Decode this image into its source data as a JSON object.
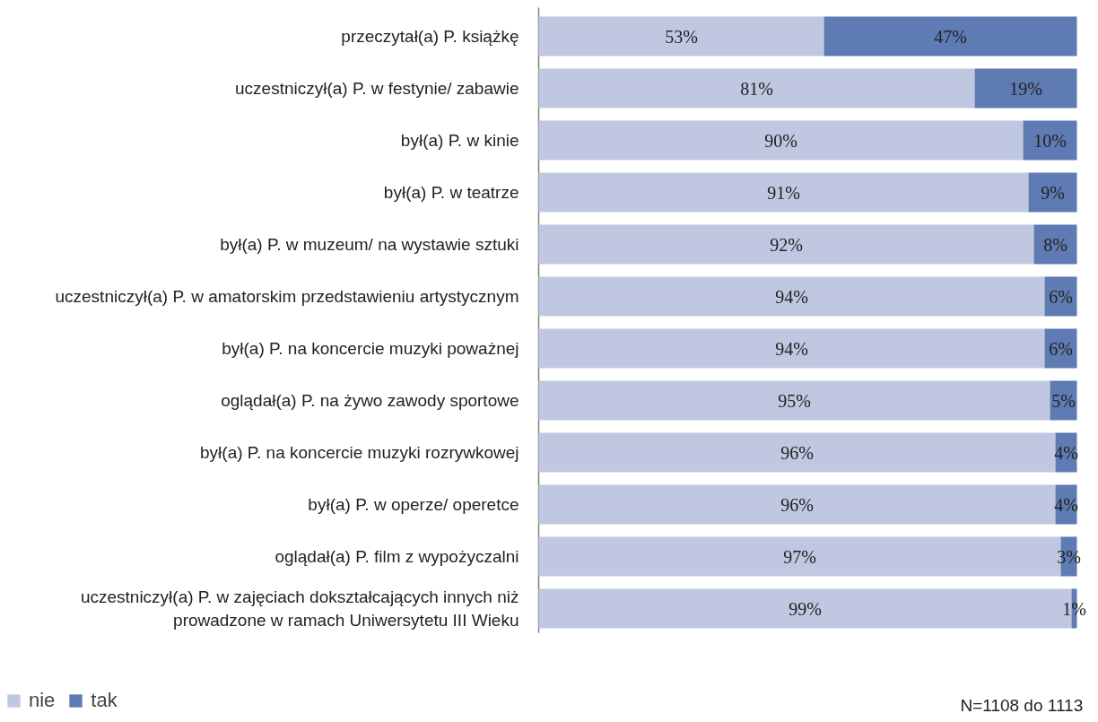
{
  "chart_data": {
    "type": "bar",
    "orientation": "horizontal",
    "stacked": true,
    "categories": [
      "przeczytał(a) P. książkę",
      "uczestniczył(a) P. w festynie/ zabawie",
      "był(a) P. w kinie",
      "był(a) P. w teatrze",
      "był(a) P. w muzeum/ na wystawie sztuki",
      "uczestniczył(a) P. w amatorskim przedstawieniu artystycznym",
      "był(a) P. na koncercie muzyki poważnej",
      "oglądał(a) P. na żywo zawody sportowe",
      "był(a) P. na koncercie muzyki rozrywkowej",
      "był(a) P. w operze/ operetce",
      "oglądał(a) P. film z wypożyczalni",
      "uczestniczył(a) P. w zajęciach dokształcających innych niż\nprowadzone w ramach Uniwersytetu III Wieku"
    ],
    "series": [
      {
        "name": "nie",
        "color": "#c0c7e0",
        "values": [
          53,
          81,
          90,
          91,
          92,
          94,
          94,
          95,
          96,
          96,
          97,
          99
        ],
        "value_labels": [
          "53%",
          "81%",
          "90%",
          "91%",
          "92%",
          "94%",
          "94%",
          "95%",
          "96%",
          "96%",
          "97%",
          "99%"
        ]
      },
      {
        "name": "tak",
        "color": "#5f7bb3",
        "values": [
          47,
          19,
          10,
          9,
          8,
          6,
          6,
          5,
          4,
          4,
          3,
          1
        ],
        "value_labels": [
          "47%",
          "19%",
          "10%",
          "9%",
          "8%",
          "6%",
          "6%",
          "5%",
          "4%",
          "4%",
          "3%",
          "1%"
        ]
      }
    ],
    "tick_labels": "y",
    "legend": "bottom left",
    "annotations": [
      "N=1108  do 1113"
    ]
  }
}
